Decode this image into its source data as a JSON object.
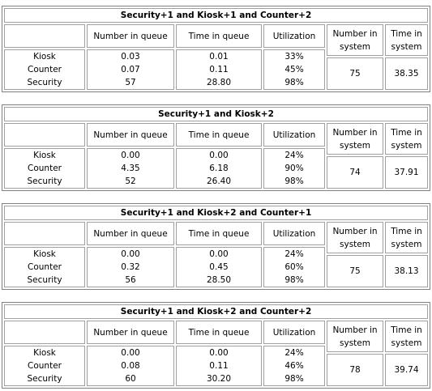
{
  "headers": {
    "number_in_queue": "Number in queue",
    "time_in_queue": "Time in queue",
    "utilization": "Utilization",
    "number_in_system": "Number in system",
    "time_in_system": "Time in system"
  },
  "rows": [
    "Kiosk",
    "Counter",
    "Security"
  ],
  "scenarios": [
    {
      "title": "Security+1 and Kiosk+1 and Counter+2",
      "number_in_queue": [
        "0.03",
        "0.07",
        "57"
      ],
      "time_in_queue": [
        "0.01",
        "0.11",
        "28.80"
      ],
      "utilization": [
        "33%",
        "45%",
        "98%"
      ],
      "number_in_system": "75",
      "time_in_system": "38.35"
    },
    {
      "title": "Security+1 and Kiosk+2",
      "number_in_queue": [
        "0.00",
        "4.35",
        "52"
      ],
      "time_in_queue": [
        "0.00",
        "6.18",
        "26.40"
      ],
      "utilization": [
        "24%",
        "90%",
        "98%"
      ],
      "number_in_system": "74",
      "time_in_system": "37.91"
    },
    {
      "title": "Security+1 and Kiosk+2 and Counter+1",
      "number_in_queue": [
        "0.00",
        "0.32",
        "56"
      ],
      "time_in_queue": [
        "0.00",
        "0.45",
        "28.50"
      ],
      "utilization": [
        "24%",
        "60%",
        "98%"
      ],
      "number_in_system": "75",
      "time_in_system": "38.13"
    },
    {
      "title": "Security+1 and Kiosk+2 and Counter+2",
      "number_in_queue": [
        "0.00",
        "0.08",
        "60"
      ],
      "time_in_queue": [
        "0.00",
        "0.11",
        "30.20"
      ],
      "utilization": [
        "24%",
        "46%",
        "98%"
      ],
      "number_in_system": "78",
      "time_in_system": "39.74"
    }
  ]
}
